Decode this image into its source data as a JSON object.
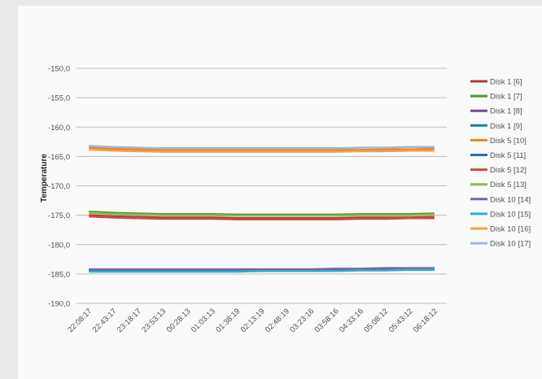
{
  "chart_data": {
    "type": "line",
    "title": "",
    "xlabel": "",
    "ylabel": "Temperature",
    "ylim": [
      -190,
      -150
    ],
    "y_ticks": [
      "-150,0",
      "-155,0",
      "-160,0",
      "-165,0",
      "-170,0",
      "-175,0",
      "-180,0",
      "-185,0",
      "-190,0"
    ],
    "y_tick_values": [
      -150,
      -155,
      -160,
      -165,
      -170,
      -175,
      -180,
      -185,
      -190
    ],
    "categories": [
      "22:08:17",
      "22:43:17",
      "23:18:17",
      "23:53:13",
      "00:28:13",
      "01:03:13",
      "01:38:19",
      "02:13:19",
      "02:48:19",
      "03:23:16",
      "03:58:16",
      "04:33:16",
      "05:08:12",
      "05:43:12",
      "06:18:12"
    ],
    "grid": true,
    "legend_position": "right",
    "series": [
      {
        "name": "Disk 1 [6]",
        "color": "#b03a36",
        "values": [
          -175.0,
          -175.2,
          -175.3,
          -175.4,
          -175.4,
          -175.4,
          -175.5,
          -175.5,
          -175.5,
          -175.5,
          -175.5,
          -175.4,
          -175.4,
          -175.4,
          -175.3
        ]
      },
      {
        "name": "Disk 1 [7]",
        "color": "#4b9a35",
        "values": [
          -174.4,
          -174.6,
          -174.7,
          -174.8,
          -174.8,
          -174.8,
          -174.9,
          -174.9,
          -174.9,
          -174.9,
          -174.9,
          -174.8,
          -174.8,
          -174.8,
          -174.7
        ]
      },
      {
        "name": "Disk 1 [8]",
        "color": "#6a4a93",
        "values": [
          -184.4,
          -184.4,
          -184.4,
          -184.4,
          -184.4,
          -184.4,
          -184.4,
          -184.4,
          -184.4,
          -184.4,
          -184.3,
          -184.3,
          -184.2,
          -184.2,
          -184.2
        ]
      },
      {
        "name": "Disk 1 [9]",
        "color": "#1d8090",
        "values": [
          -184.5,
          -184.5,
          -184.5,
          -184.5,
          -184.5,
          -184.5,
          -184.5,
          -184.4,
          -184.4,
          -184.4,
          -184.4,
          -184.3,
          -184.3,
          -184.2,
          -184.2
        ]
      },
      {
        "name": "Disk 5 [10]",
        "color": "#e8842f",
        "values": [
          -163.5,
          -163.7,
          -163.8,
          -163.9,
          -163.9,
          -163.9,
          -163.9,
          -163.9,
          -163.9,
          -163.9,
          -163.9,
          -163.9,
          -163.8,
          -163.8,
          -163.7
        ]
      },
      {
        "name": "Disk 5 [11]",
        "color": "#2f68b0",
        "values": [
          -184.3,
          -184.3,
          -184.3,
          -184.3,
          -184.3,
          -184.3,
          -184.3,
          -184.3,
          -184.3,
          -184.3,
          -184.2,
          -184.2,
          -184.1,
          -184.1,
          -184.0
        ]
      },
      {
        "name": "Disk 5 [12]",
        "color": "#d04a45",
        "values": [
          -175.2,
          -175.4,
          -175.5,
          -175.6,
          -175.6,
          -175.6,
          -175.7,
          -175.7,
          -175.7,
          -175.7,
          -175.7,
          -175.6,
          -175.6,
          -175.5,
          -175.5
        ]
      },
      {
        "name": "Disk 5 [13]",
        "color": "#8cbc4d",
        "values": [
          -174.6,
          -174.8,
          -174.9,
          -175.0,
          -175.0,
          -175.0,
          -175.1,
          -175.1,
          -175.1,
          -175.1,
          -175.1,
          -175.0,
          -175.0,
          -175.0,
          -174.9
        ]
      },
      {
        "name": "Disk 10 [14]",
        "color": "#7e63a8",
        "values": [
          -184.2,
          -184.2,
          -184.2,
          -184.2,
          -184.2,
          -184.2,
          -184.2,
          -184.2,
          -184.2,
          -184.2,
          -184.1,
          -184.1,
          -184.0,
          -184.0,
          -184.0
        ]
      },
      {
        "name": "Disk 10 [15]",
        "color": "#2bb0c8",
        "values": [
          -184.6,
          -184.6,
          -184.6,
          -184.6,
          -184.6,
          -184.6,
          -184.6,
          -184.5,
          -184.5,
          -184.5,
          -184.5,
          -184.4,
          -184.4,
          -184.3,
          -184.3
        ]
      },
      {
        "name": "Disk 10 [16]",
        "color": "#f2a047",
        "values": [
          -163.8,
          -164.0,
          -164.1,
          -164.2,
          -164.2,
          -164.2,
          -164.2,
          -164.2,
          -164.2,
          -164.2,
          -164.2,
          -164.1,
          -164.1,
          -164.0,
          -164.0
        ]
      },
      {
        "name": "Disk 10 [17]",
        "color": "#9fb7d3",
        "values": [
          -163.2,
          -163.4,
          -163.5,
          -163.6,
          -163.6,
          -163.6,
          -163.6,
          -163.6,
          -163.6,
          -163.6,
          -163.6,
          -163.5,
          -163.5,
          -163.4,
          -163.4
        ]
      }
    ]
  }
}
